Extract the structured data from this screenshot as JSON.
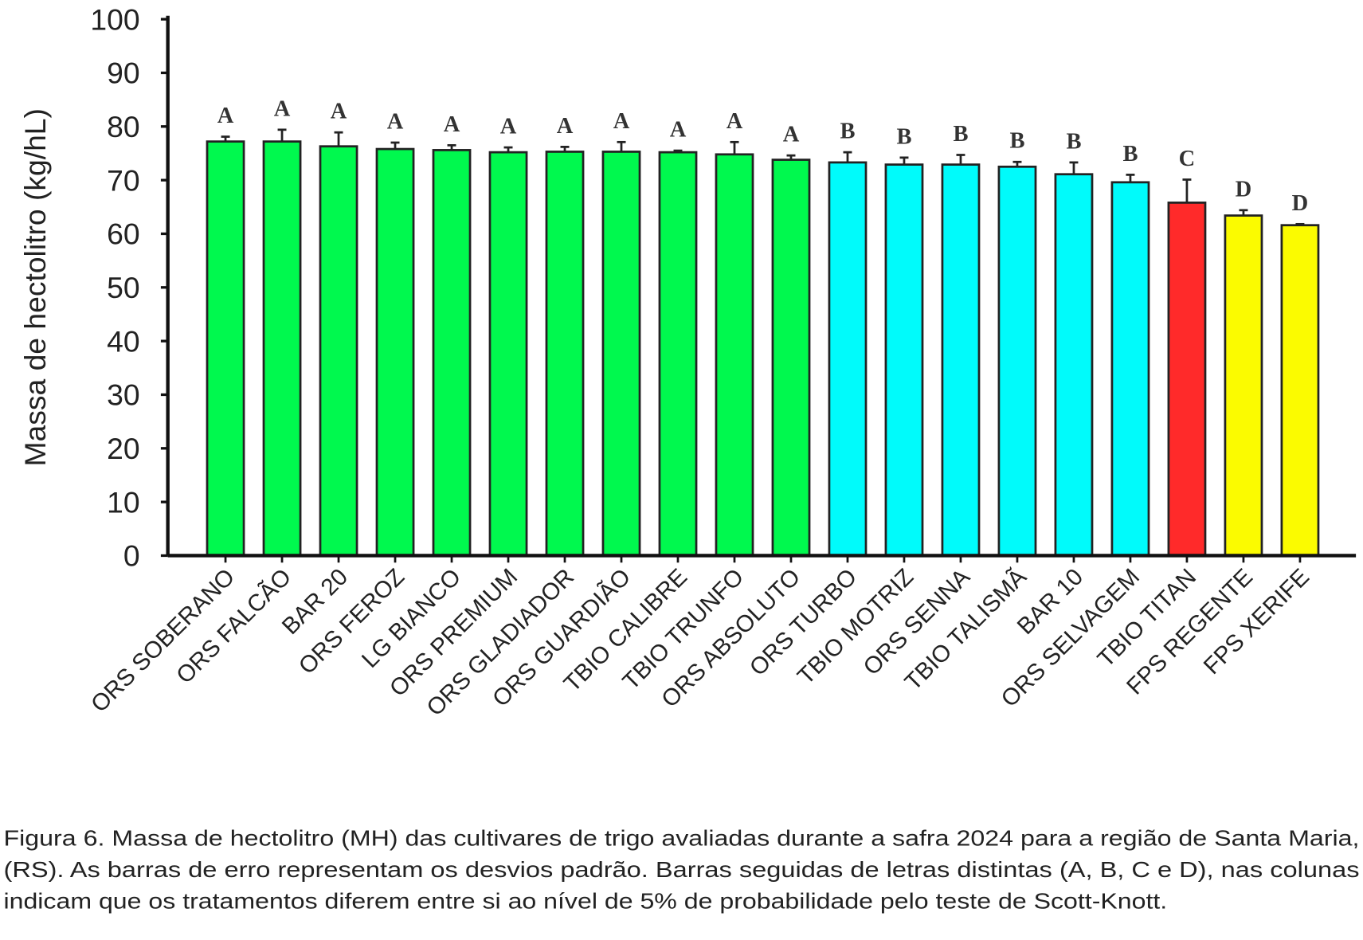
{
  "chart_data": {
    "type": "bar",
    "title": "",
    "xlabel": "",
    "ylabel": "Massa de hectolitro (kg/hL)",
    "ylim": [
      0,
      100
    ],
    "yticks": [
      0,
      10,
      20,
      30,
      40,
      50,
      60,
      70,
      80,
      90,
      100
    ],
    "grid": false,
    "categories": [
      "ORS SOBERANO",
      "ORS FALCÃO",
      "BAR 20",
      "ORS FEROZ",
      "LG BIANCO",
      "ORS PREMIUM",
      "ORS GLADIADOR",
      "ORS GUARDIÃO",
      "TBIO CALIBRE",
      "TBIO TRUNFO",
      "ORS ABSOLUTO",
      "ORS TURBO",
      "TBIO MOTRIZ",
      "ORS SENNA",
      "TBIO TALISMÃ",
      "BAR 10",
      "ORS SELVAGEM",
      "TBIO TITAN",
      "FPS REGENTE",
      "FPS XERIFE"
    ],
    "values": [
      77.2,
      77.2,
      76.3,
      75.8,
      75.6,
      75.2,
      75.3,
      75.3,
      75.2,
      74.8,
      73.8,
      73.3,
      72.9,
      72.9,
      72.5,
      71.1,
      69.6,
      65.8,
      63.4,
      61.6
    ],
    "errors": [
      0.9,
      2.2,
      2.6,
      1.2,
      0.9,
      0.9,
      0.9,
      1.8,
      0.3,
      2.3,
      0.8,
      1.9,
      1.3,
      1.8,
      0.9,
      2.2,
      1.4,
      4.3,
      1.0,
      0.2
    ],
    "groups": [
      "A",
      "A",
      "A",
      "A",
      "A",
      "A",
      "A",
      "A",
      "A",
      "A",
      "A",
      "B",
      "B",
      "B",
      "B",
      "B",
      "B",
      "C",
      "D",
      "D"
    ],
    "group_colors": {
      "A": "#00f94e",
      "B": "#00fbfb",
      "C": "#ff2a2a",
      "D": "#fbfb00"
    }
  },
  "caption": [
    "Figura 6. Massa de hectolitro (MH) das cultivares de trigo avaliadas durante a safra 2024 para a região de Santa Maria,",
    "(RS). As barras de erro representam os desvios padrão. Barras seguidas de letras distintas (A, B, C e D), nas colunas",
    "indicam que os tratamentos diferem entre si ao nível de 5% de probabilidade pelo teste de Scott-Knott."
  ]
}
